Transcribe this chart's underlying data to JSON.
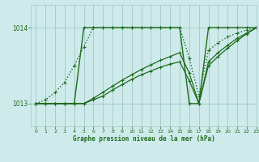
{
  "bg_color": "#ceeaea",
  "line_color": "#1e6b1e",
  "grid_color": "#a0c8c8",
  "xlabel": "Graphe pression niveau de la mer (hPa)",
  "ylim": [
    1012.7,
    1014.3
  ],
  "xlim": [
    -0.5,
    23
  ],
  "yticks": [
    1013,
    1014
  ],
  "xticks": [
    0,
    1,
    2,
    3,
    4,
    5,
    6,
    7,
    8,
    9,
    10,
    11,
    12,
    13,
    14,
    15,
    16,
    17,
    18,
    19,
    20,
    21,
    22,
    23
  ],
  "series": [
    {
      "x": [
        0,
        1,
        2,
        3,
        4,
        5,
        6,
        7,
        8,
        9,
        10,
        11,
        12,
        13,
        14,
        15,
        16,
        17,
        18,
        19,
        20,
        21,
        22,
        23
      ],
      "y": [
        1013.0,
        1013.0,
        1013.0,
        1013.0,
        1013.0,
        1014.0,
        1014.0,
        1014.0,
        1014.0,
        1014.0,
        1014.0,
        1014.0,
        1014.0,
        1014.0,
        1014.0,
        1014.0,
        1013.0,
        1013.0,
        1014.0,
        1014.0,
        1014.0,
        1014.0,
        1014.0,
        1014.0
      ],
      "linestyle": "-",
      "linewidth": 1.0,
      "marker": "+"
    },
    {
      "x": [
        0,
        1,
        2,
        3,
        4,
        5,
        6,
        7,
        8,
        9,
        10,
        11,
        12,
        13,
        14,
        15,
        16,
        17,
        18,
        19,
        20,
        21,
        22,
        23
      ],
      "y": [
        1013.0,
        1013.05,
        1013.15,
        1013.28,
        1013.5,
        1013.75,
        1014.0,
        1014.0,
        1014.0,
        1014.0,
        1014.0,
        1014.0,
        1014.0,
        1014.0,
        1014.0,
        1014.0,
        1013.6,
        1013.1,
        1013.7,
        1013.8,
        1013.88,
        1013.93,
        1013.97,
        1014.0
      ],
      "linestyle": ":",
      "linewidth": 1.0,
      "marker": "+"
    },
    {
      "x": [
        0,
        1,
        2,
        3,
        4,
        5,
        6,
        7,
        8,
        9,
        10,
        11,
        12,
        13,
        14,
        15,
        16,
        17,
        18,
        19,
        20,
        21,
        22,
        23
      ],
      "y": [
        1013.0,
        1013.0,
        1013.0,
        1013.0,
        1013.0,
        1013.0,
        1013.05,
        1013.1,
        1013.18,
        1013.25,
        1013.32,
        1013.38,
        1013.43,
        1013.48,
        1013.52,
        1013.55,
        1013.3,
        1013.0,
        1013.5,
        1013.62,
        1013.73,
        1013.83,
        1013.92,
        1014.0
      ],
      "linestyle": "-",
      "linewidth": 0.9,
      "marker": "+"
    },
    {
      "x": [
        0,
        1,
        2,
        3,
        4,
        5,
        6,
        7,
        8,
        9,
        10,
        11,
        12,
        13,
        14,
        15,
        16,
        17,
        18,
        19,
        20,
        21,
        22,
        23
      ],
      "y": [
        1013.0,
        1013.0,
        1013.0,
        1013.0,
        1013.0,
        1013.0,
        1013.07,
        1013.15,
        1013.23,
        1013.31,
        1013.38,
        1013.45,
        1013.51,
        1013.57,
        1013.62,
        1013.67,
        1013.4,
        1013.0,
        1013.55,
        1013.67,
        1013.77,
        1013.86,
        1013.93,
        1014.0
      ],
      "linestyle": "-",
      "linewidth": 0.9,
      "marker": "+"
    }
  ],
  "figsize": [
    3.2,
    2.0
  ],
  "dpi": 100
}
